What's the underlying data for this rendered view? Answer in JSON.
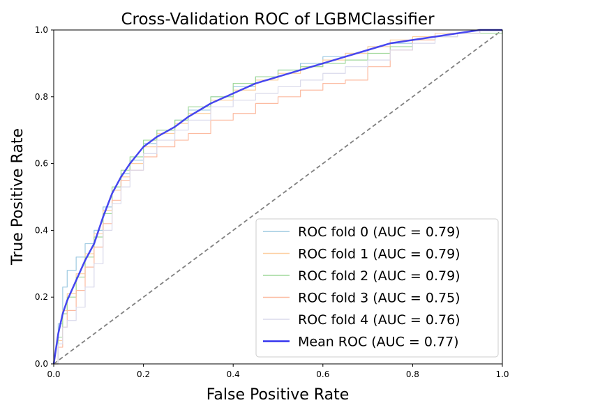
{
  "chart_data": {
    "type": "line",
    "title": "Cross-Validation ROC of LGBMClassifier",
    "xlabel": "False Positive Rate",
    "ylabel": "True Positive Rate",
    "xlim": [
      0.0,
      1.0
    ],
    "ylim": [
      0.0,
      1.0
    ],
    "xticks": [
      "0.0",
      "0.2",
      "0.4",
      "0.6",
      "0.8",
      "1.0"
    ],
    "yticks": [
      "0.0",
      "0.2",
      "0.4",
      "0.6",
      "0.8",
      "1.0"
    ],
    "grid": false,
    "legend_position": "lower-right",
    "chance_line": {
      "x": [
        0,
        1
      ],
      "y": [
        0,
        1
      ],
      "color": "#808080",
      "style": "dashed"
    },
    "series": [
      {
        "name": "ROC fold 0 (AUC = 0.79)",
        "color": "#9ecae1",
        "x": [
          0,
          0.01,
          0.02,
          0.03,
          0.05,
          0.07,
          0.09,
          0.11,
          0.13,
          0.15,
          0.17,
          0.2,
          0.23,
          0.27,
          0.3,
          0.35,
          0.4,
          0.45,
          0.5,
          0.55,
          0.6,
          0.65,
          0.7,
          0.75,
          0.8,
          0.85,
          0.9,
          0.95,
          1.0
        ],
        "y": [
          0,
          0.12,
          0.23,
          0.28,
          0.32,
          0.36,
          0.4,
          0.47,
          0.52,
          0.57,
          0.61,
          0.66,
          0.7,
          0.73,
          0.76,
          0.8,
          0.83,
          0.86,
          0.88,
          0.9,
          0.92,
          0.93,
          0.95,
          0.96,
          0.97,
          0.98,
          0.99,
          1.0,
          1.0
        ]
      },
      {
        "name": "ROC fold 1 (AUC = 0.79)",
        "color": "#fdd0a2",
        "x": [
          0,
          0.01,
          0.02,
          0.03,
          0.05,
          0.07,
          0.09,
          0.11,
          0.13,
          0.15,
          0.17,
          0.2,
          0.23,
          0.27,
          0.3,
          0.35,
          0.4,
          0.45,
          0.5,
          0.55,
          0.6,
          0.65,
          0.7,
          0.75,
          0.8,
          0.85,
          0.9,
          0.95,
          1.0
        ],
        "y": [
          0,
          0.07,
          0.16,
          0.21,
          0.27,
          0.33,
          0.39,
          0.46,
          0.52,
          0.56,
          0.6,
          0.65,
          0.69,
          0.72,
          0.75,
          0.79,
          0.82,
          0.85,
          0.87,
          0.89,
          0.91,
          0.93,
          0.95,
          0.97,
          0.98,
          0.99,
          0.99,
          1.0,
          1.0
        ]
      },
      {
        "name": "ROC fold 2 (AUC = 0.79)",
        "color": "#a1d99b",
        "x": [
          0,
          0.01,
          0.02,
          0.03,
          0.05,
          0.07,
          0.09,
          0.11,
          0.13,
          0.15,
          0.17,
          0.2,
          0.23,
          0.27,
          0.3,
          0.35,
          0.4,
          0.45,
          0.5,
          0.55,
          0.6,
          0.65,
          0.7,
          0.75,
          0.8,
          0.85,
          0.9,
          0.95,
          1.0
        ],
        "y": [
          0,
          0.08,
          0.15,
          0.2,
          0.26,
          0.32,
          0.38,
          0.45,
          0.53,
          0.58,
          0.62,
          0.67,
          0.7,
          0.73,
          0.77,
          0.8,
          0.84,
          0.86,
          0.88,
          0.89,
          0.9,
          0.91,
          0.93,
          0.95,
          0.97,
          0.98,
          0.99,
          0.99,
          1.0
        ]
      },
      {
        "name": "ROC fold 3 (AUC = 0.75)",
        "color": "#fcbba1",
        "x": [
          0,
          0.01,
          0.02,
          0.03,
          0.05,
          0.07,
          0.09,
          0.11,
          0.13,
          0.15,
          0.17,
          0.2,
          0.23,
          0.27,
          0.3,
          0.35,
          0.4,
          0.45,
          0.5,
          0.55,
          0.6,
          0.65,
          0.7,
          0.75,
          0.8,
          0.85,
          0.9,
          0.95,
          1.0
        ],
        "y": [
          0,
          0.05,
          0.11,
          0.16,
          0.22,
          0.29,
          0.35,
          0.42,
          0.49,
          0.55,
          0.58,
          0.62,
          0.65,
          0.67,
          0.69,
          0.73,
          0.75,
          0.78,
          0.8,
          0.82,
          0.84,
          0.85,
          0.89,
          0.94,
          0.97,
          0.98,
          0.99,
          1.0,
          1.0
        ]
      },
      {
        "name": "ROC fold 4 (AUC = 0.76)",
        "color": "#dadaeb",
        "x": [
          0,
          0.01,
          0.02,
          0.03,
          0.05,
          0.07,
          0.09,
          0.11,
          0.13,
          0.15,
          0.17,
          0.2,
          0.23,
          0.27,
          0.3,
          0.35,
          0.4,
          0.45,
          0.5,
          0.55,
          0.6,
          0.65,
          0.7,
          0.75,
          0.8,
          0.85,
          0.9,
          0.95,
          1.0
        ],
        "y": [
          0,
          0.06,
          0.11,
          0.13,
          0.17,
          0.23,
          0.3,
          0.4,
          0.48,
          0.53,
          0.58,
          0.63,
          0.67,
          0.7,
          0.73,
          0.77,
          0.79,
          0.81,
          0.83,
          0.85,
          0.87,
          0.89,
          0.91,
          0.94,
          0.96,
          0.98,
          0.99,
          1.0,
          1.0
        ]
      },
      {
        "name": "Mean ROC (AUC = 0.77)",
        "color": "#3333ee",
        "bold": true,
        "x": [
          0,
          0.01,
          0.02,
          0.03,
          0.05,
          0.07,
          0.09,
          0.11,
          0.13,
          0.15,
          0.17,
          0.2,
          0.23,
          0.27,
          0.3,
          0.35,
          0.4,
          0.45,
          0.5,
          0.55,
          0.6,
          0.65,
          0.7,
          0.75,
          0.8,
          0.85,
          0.9,
          0.95,
          1.0
        ],
        "y": [
          0,
          0.09,
          0.15,
          0.19,
          0.25,
          0.31,
          0.36,
          0.44,
          0.51,
          0.56,
          0.6,
          0.65,
          0.68,
          0.71,
          0.74,
          0.78,
          0.81,
          0.84,
          0.86,
          0.88,
          0.9,
          0.92,
          0.94,
          0.96,
          0.97,
          0.98,
          0.99,
          1.0,
          1.0
        ]
      }
    ]
  }
}
